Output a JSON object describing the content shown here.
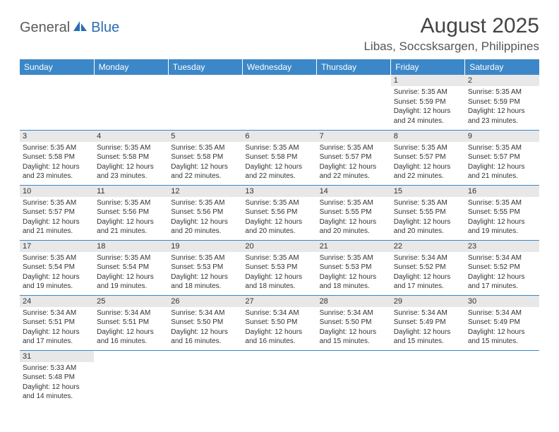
{
  "logo": {
    "part1": "General",
    "part2": "Blue"
  },
  "title": "August 2025",
  "location": "Libas, Soccsksargen, Philippines",
  "colors": {
    "header_bg": "#3b87c8",
    "header_text": "#ffffff",
    "daynum_bg": "#e8e8e8",
    "grid_line": "#3b87c8",
    "logo_gray": "#5a5a5a",
    "logo_blue": "#2a6db4"
  },
  "fonts": {
    "title_size": 30,
    "location_size": 17,
    "dayhead_size": 12,
    "daynum_size": 11,
    "body_size": 10
  },
  "day_headers": [
    "Sunday",
    "Monday",
    "Tuesday",
    "Wednesday",
    "Thursday",
    "Friday",
    "Saturday"
  ],
  "weeks": [
    [
      null,
      null,
      null,
      null,
      null,
      {
        "day": "1",
        "sunrise": "Sunrise: 5:35 AM",
        "sunset": "Sunset: 5:59 PM",
        "daylight": "Daylight: 12 hours and 24 minutes."
      },
      {
        "day": "2",
        "sunrise": "Sunrise: 5:35 AM",
        "sunset": "Sunset: 5:59 PM",
        "daylight": "Daylight: 12 hours and 23 minutes."
      }
    ],
    [
      {
        "day": "3",
        "sunrise": "Sunrise: 5:35 AM",
        "sunset": "Sunset: 5:58 PM",
        "daylight": "Daylight: 12 hours and 23 minutes."
      },
      {
        "day": "4",
        "sunrise": "Sunrise: 5:35 AM",
        "sunset": "Sunset: 5:58 PM",
        "daylight": "Daylight: 12 hours and 23 minutes."
      },
      {
        "day": "5",
        "sunrise": "Sunrise: 5:35 AM",
        "sunset": "Sunset: 5:58 PM",
        "daylight": "Daylight: 12 hours and 22 minutes."
      },
      {
        "day": "6",
        "sunrise": "Sunrise: 5:35 AM",
        "sunset": "Sunset: 5:58 PM",
        "daylight": "Daylight: 12 hours and 22 minutes."
      },
      {
        "day": "7",
        "sunrise": "Sunrise: 5:35 AM",
        "sunset": "Sunset: 5:57 PM",
        "daylight": "Daylight: 12 hours and 22 minutes."
      },
      {
        "day": "8",
        "sunrise": "Sunrise: 5:35 AM",
        "sunset": "Sunset: 5:57 PM",
        "daylight": "Daylight: 12 hours and 22 minutes."
      },
      {
        "day": "9",
        "sunrise": "Sunrise: 5:35 AM",
        "sunset": "Sunset: 5:57 PM",
        "daylight": "Daylight: 12 hours and 21 minutes."
      }
    ],
    [
      {
        "day": "10",
        "sunrise": "Sunrise: 5:35 AM",
        "sunset": "Sunset: 5:57 PM",
        "daylight": "Daylight: 12 hours and 21 minutes."
      },
      {
        "day": "11",
        "sunrise": "Sunrise: 5:35 AM",
        "sunset": "Sunset: 5:56 PM",
        "daylight": "Daylight: 12 hours and 21 minutes."
      },
      {
        "day": "12",
        "sunrise": "Sunrise: 5:35 AM",
        "sunset": "Sunset: 5:56 PM",
        "daylight": "Daylight: 12 hours and 20 minutes."
      },
      {
        "day": "13",
        "sunrise": "Sunrise: 5:35 AM",
        "sunset": "Sunset: 5:56 PM",
        "daylight": "Daylight: 12 hours and 20 minutes."
      },
      {
        "day": "14",
        "sunrise": "Sunrise: 5:35 AM",
        "sunset": "Sunset: 5:55 PM",
        "daylight": "Daylight: 12 hours and 20 minutes."
      },
      {
        "day": "15",
        "sunrise": "Sunrise: 5:35 AM",
        "sunset": "Sunset: 5:55 PM",
        "daylight": "Daylight: 12 hours and 20 minutes."
      },
      {
        "day": "16",
        "sunrise": "Sunrise: 5:35 AM",
        "sunset": "Sunset: 5:55 PM",
        "daylight": "Daylight: 12 hours and 19 minutes."
      }
    ],
    [
      {
        "day": "17",
        "sunrise": "Sunrise: 5:35 AM",
        "sunset": "Sunset: 5:54 PM",
        "daylight": "Daylight: 12 hours and 19 minutes."
      },
      {
        "day": "18",
        "sunrise": "Sunrise: 5:35 AM",
        "sunset": "Sunset: 5:54 PM",
        "daylight": "Daylight: 12 hours and 19 minutes."
      },
      {
        "day": "19",
        "sunrise": "Sunrise: 5:35 AM",
        "sunset": "Sunset: 5:53 PM",
        "daylight": "Daylight: 12 hours and 18 minutes."
      },
      {
        "day": "20",
        "sunrise": "Sunrise: 5:35 AM",
        "sunset": "Sunset: 5:53 PM",
        "daylight": "Daylight: 12 hours and 18 minutes."
      },
      {
        "day": "21",
        "sunrise": "Sunrise: 5:35 AM",
        "sunset": "Sunset: 5:53 PM",
        "daylight": "Daylight: 12 hours and 18 minutes."
      },
      {
        "day": "22",
        "sunrise": "Sunrise: 5:34 AM",
        "sunset": "Sunset: 5:52 PM",
        "daylight": "Daylight: 12 hours and 17 minutes."
      },
      {
        "day": "23",
        "sunrise": "Sunrise: 5:34 AM",
        "sunset": "Sunset: 5:52 PM",
        "daylight": "Daylight: 12 hours and 17 minutes."
      }
    ],
    [
      {
        "day": "24",
        "sunrise": "Sunrise: 5:34 AM",
        "sunset": "Sunset: 5:51 PM",
        "daylight": "Daylight: 12 hours and 17 minutes."
      },
      {
        "day": "25",
        "sunrise": "Sunrise: 5:34 AM",
        "sunset": "Sunset: 5:51 PM",
        "daylight": "Daylight: 12 hours and 16 minutes."
      },
      {
        "day": "26",
        "sunrise": "Sunrise: 5:34 AM",
        "sunset": "Sunset: 5:50 PM",
        "daylight": "Daylight: 12 hours and 16 minutes."
      },
      {
        "day": "27",
        "sunrise": "Sunrise: 5:34 AM",
        "sunset": "Sunset: 5:50 PM",
        "daylight": "Daylight: 12 hours and 16 minutes."
      },
      {
        "day": "28",
        "sunrise": "Sunrise: 5:34 AM",
        "sunset": "Sunset: 5:50 PM",
        "daylight": "Daylight: 12 hours and 15 minutes."
      },
      {
        "day": "29",
        "sunrise": "Sunrise: 5:34 AM",
        "sunset": "Sunset: 5:49 PM",
        "daylight": "Daylight: 12 hours and 15 minutes."
      },
      {
        "day": "30",
        "sunrise": "Sunrise: 5:34 AM",
        "sunset": "Sunset: 5:49 PM",
        "daylight": "Daylight: 12 hours and 15 minutes."
      }
    ],
    [
      {
        "day": "31",
        "sunrise": "Sunrise: 5:33 AM",
        "sunset": "Sunset: 5:48 PM",
        "daylight": "Daylight: 12 hours and 14 minutes."
      },
      null,
      null,
      null,
      null,
      null,
      null
    ]
  ]
}
